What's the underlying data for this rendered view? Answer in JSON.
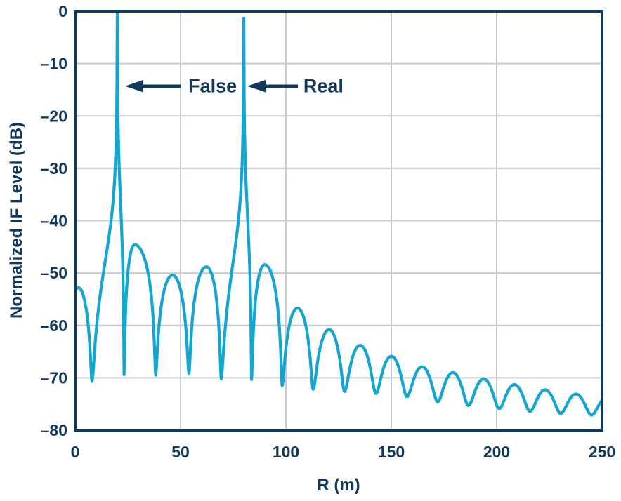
{
  "figure": {
    "background": "#ffffff",
    "description": "FMCW radar IF spectrum showing a false target peak and a real target peak"
  },
  "chart_data": {
    "type": "line",
    "title": "",
    "xlabel": "R (m)",
    "ylabel": "Normalized IF Level (dB)",
    "xlim": [
      0,
      250
    ],
    "ylim": [
      -80,
      0
    ],
    "x_ticks": [
      0,
      50,
      100,
      150,
      200,
      250
    ],
    "y_ticks": [
      0,
      -10,
      -20,
      -30,
      -40,
      -50,
      -60,
      -70,
      -80
    ],
    "grid": true,
    "legend": "none",
    "colors": {
      "line": "#14a6d2",
      "axis": "#11395e",
      "grid": "#c5ccd6",
      "text": "#11395e"
    },
    "annotations": [
      {
        "label": "False",
        "peak_m": 20,
        "peak_db": 0,
        "arrow_tip_m": 23.7,
        "arrow_tail_m": 50,
        "arrow_db": -14.3,
        "label_m": 53.7
      },
      {
        "label": "Real",
        "peak_m": 80,
        "peak_db": -1.3,
        "arrow_tip_m": 81.7,
        "arrow_tail_m": 105.7,
        "arrow_db": -14.3,
        "label_m": 108.3
      }
    ],
    "series": {
      "name": "Normalized IF level",
      "spike_peaks_m": [
        20,
        80
      ],
      "spike_half_width_m": 0.032,
      "peaks_m_db": [
        [
          1.5,
          -52.8
        ],
        [
          20,
          0
        ],
        [
          28.2,
          -44.6
        ],
        [
          46.2,
          -50.4
        ],
        [
          62.3,
          -48.8
        ],
        [
          80,
          -1.3
        ],
        [
          89.9,
          -48.4
        ],
        [
          105.5,
          -56.7
        ],
        [
          120.5,
          -60.8
        ],
        [
          135.2,
          -63.8
        ],
        [
          150,
          -65.9
        ],
        [
          164.6,
          -67.9
        ],
        [
          179.2,
          -69.0
        ],
        [
          193.8,
          -70.2
        ],
        [
          208.4,
          -71.3
        ],
        [
          223,
          -72.3
        ],
        [
          237.6,
          -73.1
        ],
        [
          252,
          -73.9
        ]
      ],
      "nulls_m_db": [
        [
          -5,
          -70
        ],
        [
          8,
          -70.7
        ],
        [
          23.2,
          -69.4
        ],
        [
          38.2,
          -69.5
        ],
        [
          54,
          -69.2
        ],
        [
          69.3,
          -70.2
        ],
        [
          83.7,
          -70.3
        ],
        [
          98.2,
          -71.5
        ],
        [
          112.9,
          -72.2
        ],
        [
          127.8,
          -72.6
        ],
        [
          142.7,
          -73.0
        ],
        [
          157.4,
          -73.6
        ],
        [
          172,
          -74.6
        ],
        [
          186.6,
          -75.3
        ],
        [
          201.2,
          -75.9
        ],
        [
          215.8,
          -76.4
        ],
        [
          230.4,
          -76.8
        ],
        [
          245,
          -77.1
        ],
        [
          259.4,
          -77.3
        ]
      ]
    }
  }
}
